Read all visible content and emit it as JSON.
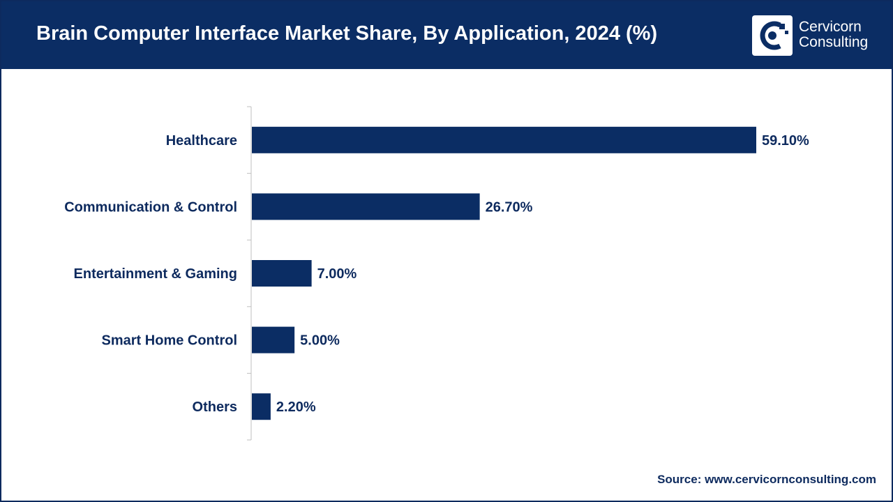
{
  "header": {
    "title": "Brain Computer Interface Market Share, By Application, 2024 (%)"
  },
  "logo": {
    "line1": "Cervicorn",
    "line2": "Consulting"
  },
  "colors": {
    "header_bg": "#0b2d64",
    "bar": "#0b2d64",
    "text": "#0d2a5e"
  },
  "chart_data": {
    "type": "bar",
    "orientation": "horizontal",
    "title": "Brain Computer Interface Market Share, By Application, 2024 (%)",
    "categories": [
      "Healthcare",
      "Communication & Control",
      "Entertainment & Gaming",
      "Smart Home Control",
      "Others"
    ],
    "values": [
      59.1,
      26.7,
      7.0,
      5.0,
      2.2
    ],
    "value_labels": [
      "59.10%",
      "26.70%",
      "7.00%",
      "5.00%",
      "2.20%"
    ],
    "xlabel": "",
    "ylabel": "",
    "xlim": [
      0,
      59.1
    ],
    "grid": false,
    "legend": "none"
  },
  "source": "Source: www.cervicornconsulting.com"
}
